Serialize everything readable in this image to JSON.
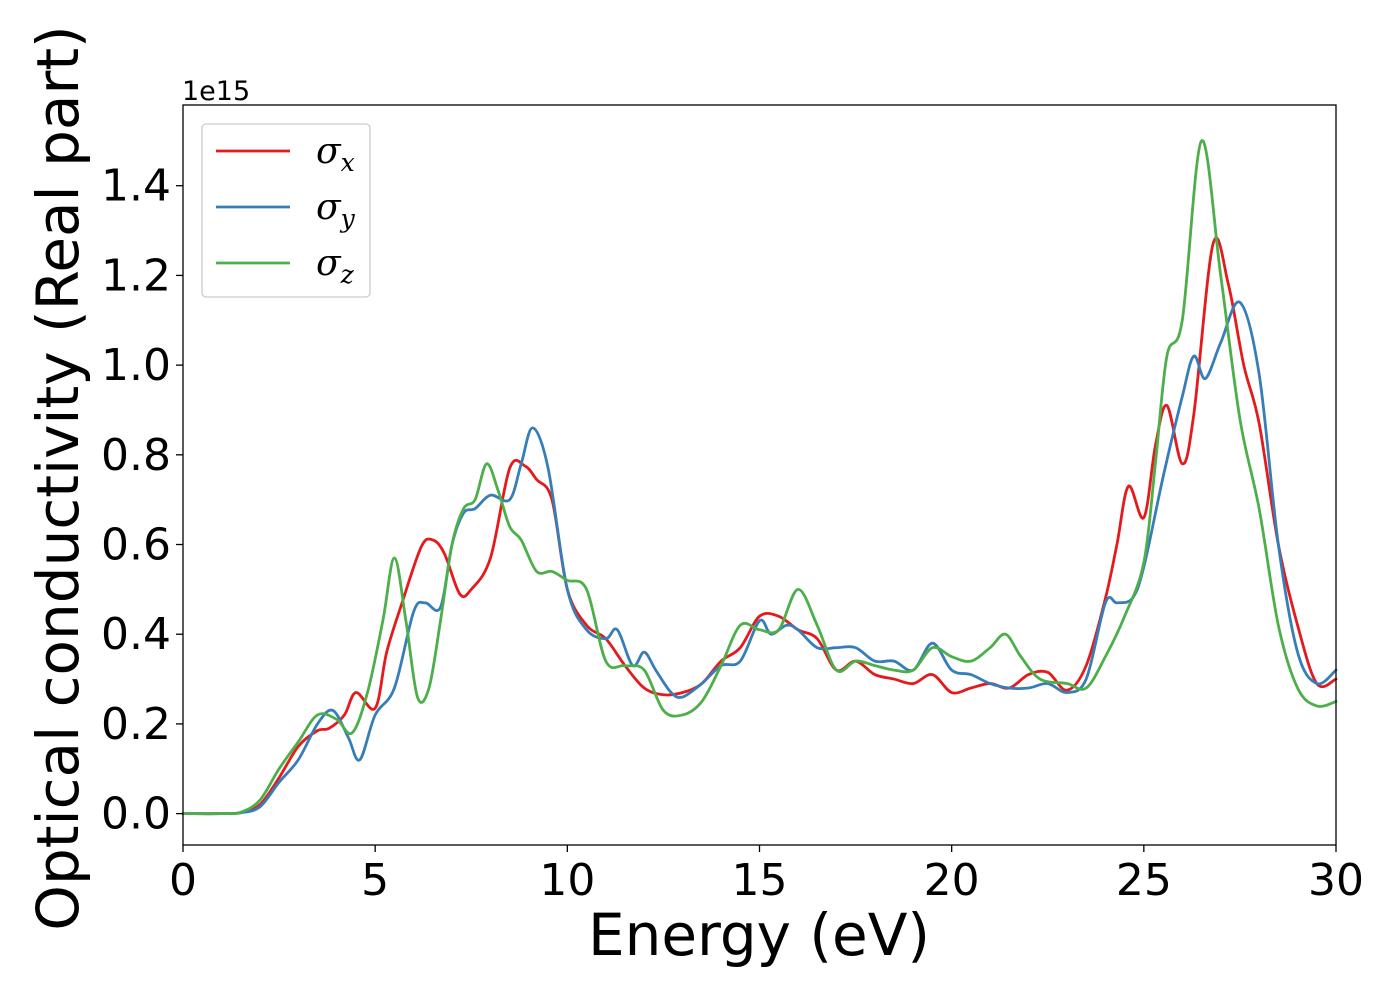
{
  "chart_data": {
    "type": "line",
    "xlabel": "Energy (eV)",
    "ylabel": "Optical conductivity (Real part)",
    "y_offset_label": "1e15",
    "y_scale": 1000000000000000.0,
    "xlim": [
      0,
      30
    ],
    "ylim": [
      -0.07,
      1.58
    ],
    "x_ticks": [
      0,
      5,
      10,
      15,
      20,
      25,
      30
    ],
    "x_tick_labels": [
      "0",
      "5",
      "10",
      "15",
      "20",
      "25",
      "30"
    ],
    "y_ticks": [
      0.0,
      0.2,
      0.4,
      0.6,
      0.8,
      1.0,
      1.2,
      1.4
    ],
    "y_tick_labels": [
      "0.0",
      "0.2",
      "0.4",
      "0.6",
      "0.8",
      "1.0",
      "1.2",
      "1.4"
    ],
    "grid": false,
    "legend_position": "top-left",
    "series": [
      {
        "name": "σx",
        "symbol": "σ",
        "subscript": "x",
        "color": "#e41a1c",
        "x": [
          0,
          1,
          1.5,
          2,
          2.5,
          3,
          3.5,
          3.8,
          4.2,
          4.5,
          5,
          5.3,
          5.7,
          6.2,
          6.5,
          6.8,
          7.2,
          7.5,
          8,
          8.5,
          8.9,
          9.2,
          9.6,
          10,
          10.5,
          11,
          11.5,
          12,
          12.5,
          13,
          13.5,
          14,
          14.5,
          15,
          15.5,
          16,
          16.5,
          17,
          17.5,
          18,
          18.5,
          19,
          19.5,
          20,
          20.5,
          21,
          21.5,
          22,
          22.5,
          23,
          23.5,
          24,
          24.3,
          24.6,
          25,
          25.3,
          25.6,
          26,
          26.3,
          26.8,
          27.2,
          27.6,
          28,
          28.5,
          29,
          29.5,
          30
        ],
        "y": [
          0,
          0,
          0.002,
          0.02,
          0.08,
          0.15,
          0.185,
          0.19,
          0.22,
          0.27,
          0.235,
          0.36,
          0.47,
          0.595,
          0.61,
          0.58,
          0.49,
          0.5,
          0.57,
          0.77,
          0.775,
          0.745,
          0.7,
          0.5,
          0.42,
          0.39,
          0.33,
          0.28,
          0.265,
          0.27,
          0.29,
          0.34,
          0.37,
          0.44,
          0.44,
          0.41,
          0.39,
          0.32,
          0.34,
          0.31,
          0.3,
          0.29,
          0.31,
          0.27,
          0.28,
          0.29,
          0.28,
          0.31,
          0.315,
          0.275,
          0.33,
          0.48,
          0.6,
          0.73,
          0.66,
          0.82,
          0.91,
          0.78,
          0.89,
          1.27,
          1.18,
          1.0,
          0.87,
          0.6,
          0.42,
          0.29,
          0.3
        ]
      },
      {
        "name": "σy",
        "symbol": "σ",
        "subscript": "y",
        "color": "#377eb8",
        "x": [
          0,
          1,
          1.5,
          2,
          2.5,
          3,
          3.5,
          3.9,
          4.3,
          4.6,
          5,
          5.5,
          6,
          6.3,
          6.7,
          7,
          7.3,
          7.6,
          8,
          8.5,
          8.8,
          9.1,
          9.5,
          10,
          10.5,
          11,
          11.3,
          11.7,
          12,
          12.3,
          12.7,
          13,
          13.5,
          14,
          14.5,
          15,
          15.3,
          15.7,
          16,
          16.5,
          17,
          17.5,
          18,
          18.5,
          19,
          19.5,
          20,
          20.5,
          21,
          21.5,
          22,
          22.5,
          23,
          23.5,
          24,
          24.3,
          24.7,
          25,
          25.5,
          26,
          26.3,
          26.6,
          27,
          27.5,
          28,
          28.5,
          29,
          29.5,
          30
        ],
        "y": [
          0,
          0,
          0.002,
          0.015,
          0.07,
          0.12,
          0.2,
          0.23,
          0.17,
          0.12,
          0.22,
          0.28,
          0.45,
          0.47,
          0.46,
          0.6,
          0.67,
          0.68,
          0.71,
          0.7,
          0.78,
          0.86,
          0.77,
          0.5,
          0.41,
          0.39,
          0.41,
          0.33,
          0.36,
          0.32,
          0.27,
          0.26,
          0.29,
          0.33,
          0.34,
          0.43,
          0.4,
          0.42,
          0.41,
          0.37,
          0.37,
          0.37,
          0.34,
          0.34,
          0.32,
          0.38,
          0.32,
          0.31,
          0.29,
          0.28,
          0.28,
          0.29,
          0.27,
          0.3,
          0.47,
          0.47,
          0.48,
          0.55,
          0.75,
          0.93,
          1.02,
          0.97,
          1.05,
          1.14,
          0.98,
          0.6,
          0.36,
          0.29,
          0.32
        ]
      },
      {
        "name": "σz",
        "symbol": "σ",
        "subscript": "z",
        "color": "#4daf4a",
        "x": [
          0,
          1,
          1.5,
          2,
          2.5,
          3,
          3.5,
          4,
          4.4,
          4.8,
          5.2,
          5.5,
          5.8,
          6.1,
          6.4,
          6.7,
          7,
          7.3,
          7.6,
          7.9,
          8.2,
          8.5,
          8.8,
          9.2,
          9.6,
          10,
          10.5,
          11,
          11.5,
          12,
          12.5,
          13,
          13.5,
          14,
          14.5,
          15,
          15.5,
          16,
          16.5,
          17,
          17.5,
          18,
          18.5,
          19,
          19.5,
          20,
          20.5,
          21,
          21.4,
          21.8,
          22.3,
          23,
          23.5,
          24,
          24.5,
          25,
          25.3,
          25.6,
          26,
          26.5,
          27,
          27.5,
          28,
          28.5,
          29,
          29.5,
          30
        ],
        "y": [
          0,
          0,
          0.003,
          0.03,
          0.1,
          0.16,
          0.22,
          0.21,
          0.18,
          0.27,
          0.43,
          0.57,
          0.43,
          0.26,
          0.28,
          0.43,
          0.6,
          0.68,
          0.7,
          0.78,
          0.72,
          0.64,
          0.61,
          0.54,
          0.54,
          0.52,
          0.5,
          0.34,
          0.33,
          0.32,
          0.23,
          0.22,
          0.25,
          0.33,
          0.42,
          0.41,
          0.41,
          0.5,
          0.42,
          0.32,
          0.34,
          0.33,
          0.32,
          0.32,
          0.37,
          0.35,
          0.34,
          0.37,
          0.4,
          0.35,
          0.3,
          0.29,
          0.28,
          0.35,
          0.44,
          0.56,
          0.78,
          1.02,
          1.1,
          1.5,
          1.2,
          0.88,
          0.68,
          0.42,
          0.28,
          0.24,
          0.25
        ]
      }
    ]
  }
}
